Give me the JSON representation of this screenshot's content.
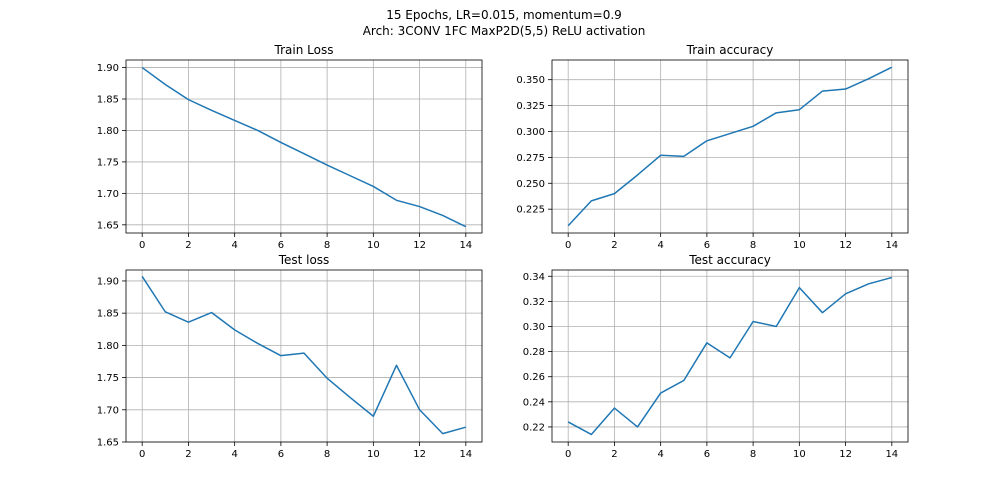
{
  "figure": {
    "suptitle_line1": "15 Epochs, LR=0.015, momentum=0.9",
    "suptitle_line2": "Arch: 3CONV 1FC MaxP2D(5,5) ReLU activation",
    "line_color": "#1f77b4"
  },
  "chart_data": [
    {
      "type": "line",
      "title": "Train Loss",
      "x": [
        0,
        1,
        2,
        3,
        4,
        5,
        6,
        7,
        8,
        9,
        10,
        11,
        12,
        13,
        14
      ],
      "series": [
        {
          "values": [
            1.9,
            1.873,
            1.849,
            1.832,
            1.816,
            1.8,
            1.781,
            1.763,
            1.745,
            1.728,
            1.711,
            1.689,
            1.679,
            1.665,
            1.647
          ]
        }
      ],
      "xlim": [
        -0.7,
        14.7
      ],
      "ylim": [
        1.637,
        1.912
      ],
      "xticks": [
        0,
        2,
        4,
        6,
        8,
        10,
        12,
        14
      ],
      "xtick_labels": [
        "0",
        "2",
        "4",
        "6",
        "8",
        "10",
        "12",
        "14"
      ],
      "yticks": [
        1.65,
        1.7,
        1.75,
        1.8,
        1.85,
        1.9
      ],
      "ytick_labels": [
        "1.65",
        "1.70",
        "1.75",
        "1.80",
        "1.85",
        "1.90"
      ],
      "grid": true
    },
    {
      "type": "line",
      "title": "Train accuracy",
      "x": [
        0,
        1,
        2,
        3,
        4,
        5,
        6,
        7,
        8,
        9,
        10,
        11,
        12,
        13,
        14
      ],
      "series": [
        {
          "values": [
            0.209,
            0.233,
            0.24,
            0.258,
            0.277,
            0.276,
            0.291,
            0.298,
            0.305,
            0.318,
            0.321,
            0.339,
            0.341,
            0.351,
            0.362
          ]
        }
      ],
      "xlim": [
        -0.7,
        14.7
      ],
      "ylim": [
        0.202,
        0.369
      ],
      "xticks": [
        0,
        2,
        4,
        6,
        8,
        10,
        12,
        14
      ],
      "xtick_labels": [
        "0",
        "2",
        "4",
        "6",
        "8",
        "10",
        "12",
        "14"
      ],
      "yticks": [
        0.225,
        0.25,
        0.275,
        0.3,
        0.325,
        0.35
      ],
      "ytick_labels": [
        "0.225",
        "0.250",
        "0.275",
        "0.300",
        "0.325",
        "0.350"
      ],
      "grid": true
    },
    {
      "type": "line",
      "title": "Test loss",
      "x": [
        0,
        1,
        2,
        3,
        4,
        5,
        6,
        7,
        8,
        9,
        10,
        11,
        12,
        13,
        14
      ],
      "series": [
        {
          "values": [
            1.907,
            1.852,
            1.836,
            1.851,
            1.824,
            1.803,
            1.784,
            1.788,
            1.749,
            1.719,
            1.69,
            1.769,
            1.7,
            1.663,
            1.673
          ]
        }
      ],
      "xlim": [
        -0.7,
        14.7
      ],
      "ylim": [
        1.65,
        1.917
      ],
      "xticks": [
        0,
        2,
        4,
        6,
        8,
        10,
        12,
        14
      ],
      "xtick_labels": [
        "0",
        "2",
        "4",
        "6",
        "8",
        "10",
        "12",
        "14"
      ],
      "yticks": [
        1.65,
        1.7,
        1.75,
        1.8,
        1.85,
        1.9
      ],
      "ytick_labels": [
        "1.65",
        "1.70",
        "1.75",
        "1.80",
        "1.85",
        "1.90"
      ],
      "grid": true
    },
    {
      "type": "line",
      "title": "Test accuracy",
      "x": [
        0,
        1,
        2,
        3,
        4,
        5,
        6,
        7,
        8,
        9,
        10,
        11,
        12,
        13,
        14
      ],
      "series": [
        {
          "values": [
            0.224,
            0.214,
            0.235,
            0.22,
            0.247,
            0.257,
            0.287,
            0.275,
            0.304,
            0.3,
            0.331,
            0.311,
            0.326,
            0.334,
            0.339
          ]
        }
      ],
      "xlim": [
        -0.7,
        14.7
      ],
      "ylim": [
        0.208,
        0.345
      ],
      "xticks": [
        0,
        2,
        4,
        6,
        8,
        10,
        12,
        14
      ],
      "xtick_labels": [
        "0",
        "2",
        "4",
        "6",
        "8",
        "10",
        "12",
        "14"
      ],
      "yticks": [
        0.22,
        0.24,
        0.26,
        0.28,
        0.3,
        0.32,
        0.34
      ],
      "ytick_labels": [
        "0.22",
        "0.24",
        "0.26",
        "0.28",
        "0.30",
        "0.32",
        "0.34"
      ],
      "grid": true
    }
  ]
}
